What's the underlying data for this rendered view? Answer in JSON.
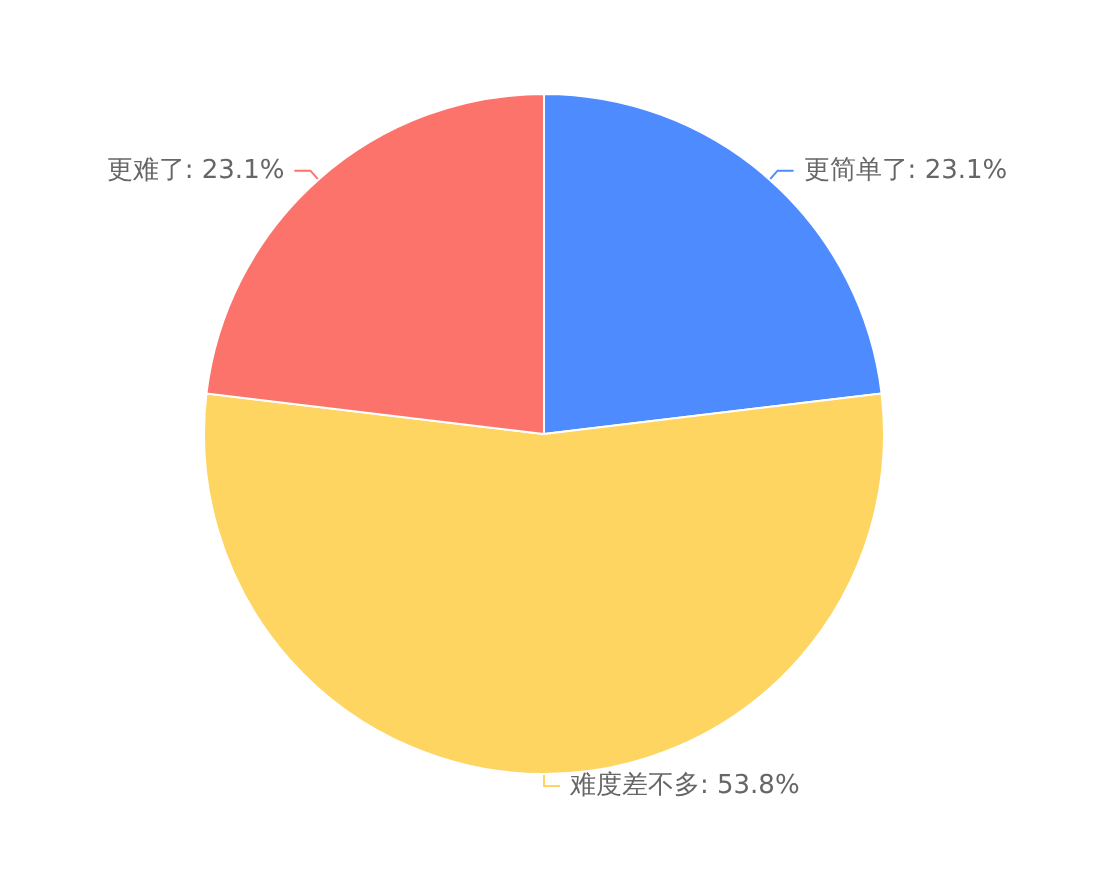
{
  "chart_data": {
    "type": "pie",
    "categories": [
      "更简单了",
      "难度差不多",
      "更难了"
    ],
    "values": [
      23.1,
      53.8,
      23.1
    ],
    "colors": [
      "#4e8bff",
      "#fdd560",
      "#fc736c"
    ],
    "value_labels": [
      "23.1%",
      "53.8%",
      "23.1%"
    ]
  }
}
